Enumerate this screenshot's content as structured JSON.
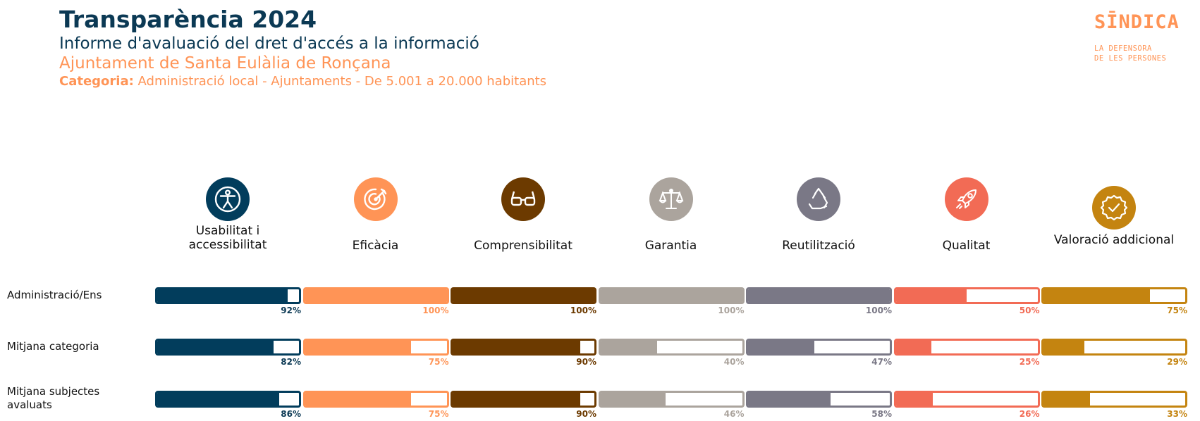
{
  "header": {
    "title": "Transparència 2024",
    "subtitle": "Informe d'avaluació del dret d'accés a la informació",
    "entity": "Ajuntament de Santa Eulàlia de Ronçana",
    "category_label": "Categoria:",
    "category_value": "Administració local - Ajuntaments - De 5.001 a 20.000 habitants"
  },
  "logo": {
    "word": "SĪNDICA",
    "line1": "LA DEFENSORA",
    "line2": "DE LES PERSONES"
  },
  "chart_data": {
    "type": "bar",
    "categories": [
      "Usabilitat i accessibilitat",
      "Eficàcia",
      "Comprensibilitat",
      "Garantia",
      "Reutilització",
      "Qualitat",
      "Valoració addicional"
    ],
    "category_icons": [
      "accessibility-icon",
      "target-icon",
      "glasses-icon",
      "scales-icon",
      "recycle-icon",
      "rocket-icon",
      "badge-check-icon"
    ],
    "category_colors": [
      "#023d5c",
      "#ff9456",
      "#6c3a00",
      "#aba49d",
      "#7a7886",
      "#f26b55",
      "#c48410"
    ],
    "label_colors": [
      "#0b3954",
      "#ff9456",
      "#6c3a00",
      "#aba49d",
      "#7a7886",
      "#f26b55",
      "#c48410"
    ],
    "series": [
      {
        "name": "Administració/Ens",
        "values": [
          92,
          100,
          100,
          100,
          100,
          50,
          75
        ]
      },
      {
        "name": "Mitjana categoria",
        "values": [
          82,
          75,
          90,
          40,
          47,
          25,
          29
        ]
      },
      {
        "name": "Mitjana subjectes avaluats",
        "values": [
          86,
          75,
          90,
          46,
          58,
          26,
          33
        ]
      }
    ],
    "value_suffix": "%",
    "ylim": [
      0,
      100
    ]
  }
}
